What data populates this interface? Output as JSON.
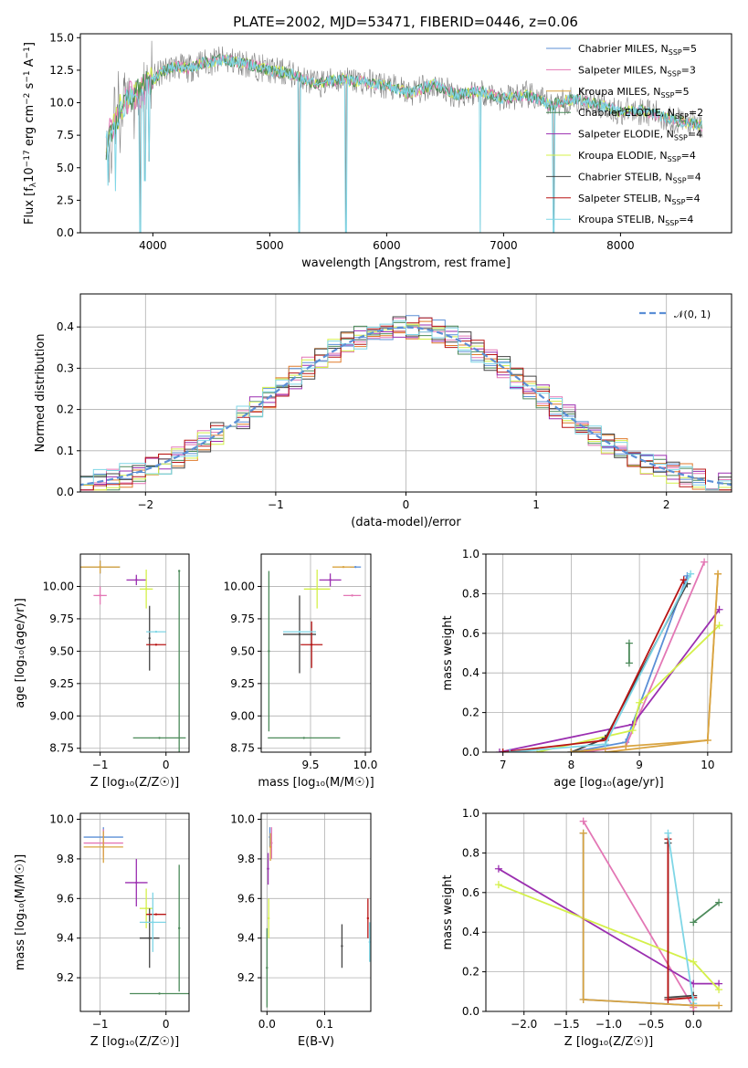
{
  "title": "PLATE=2002, MJD=53471, FIBERID=0446, z=0.06",
  "colors": {
    "Chabrier MILES": "#5b8fd6",
    "Salpeter MILES": "#e377b5",
    "Kroupa MILES": "#d9a441",
    "Chabrier ELODIE": "#4c8a5a",
    "Salpeter ELODIE": "#9b2fb0",
    "Kroupa ELODIE": "#d4f04a",
    "Chabrier STELIB": "#444444",
    "Salpeter STELIB": "#b81414",
    "Kroupa STELIB": "#7fd6e6",
    "data": "#808080",
    "dark_orange": "#e07a2a",
    "gauss": "#5b8fd6"
  },
  "chart_data": [
    {
      "type": "line",
      "id": "spectrum",
      "xlabel": "wavelength [Angstrom, rest frame]",
      "ylabel": "Flux [f_λ10^-17 erg cm^-2 s^-1 A^-1]",
      "xlim": [
        3380,
        8950
      ],
      "ylim": [
        0,
        15.3
      ],
      "xticks": [
        4000,
        5000,
        6000,
        7000,
        8000
      ],
      "yticks": [
        0.0,
        2.5,
        5.0,
        7.5,
        10.0,
        12.5,
        15.0
      ],
      "ytick_labels": [
        "0.0",
        "2.5",
        "5.0",
        "7.5",
        "10.0",
        "12.5",
        "15.0"
      ],
      "legend_position": "upper-right",
      "legend": [
        {
          "base": "Chabrier MILES, N",
          "sub": "SSP",
          "tail": "=5"
        },
        {
          "base": "Salpeter MILES, N",
          "sub": "SSP",
          "tail": "=3"
        },
        {
          "base": "Kroupa MILES, N",
          "sub": "SSP",
          "tail": "=5"
        },
        {
          "base": "Chabrier ELODIE, N",
          "sub": "SSP",
          "tail": "=2"
        },
        {
          "base": "Salpeter ELODIE, N",
          "sub": "SSP",
          "tail": "=4"
        },
        {
          "base": "Kroupa ELODIE, N",
          "sub": "SSP",
          "tail": "=4"
        },
        {
          "base": "Chabrier STELIB, N",
          "sub": "SSP",
          "tail": "=4"
        },
        {
          "base": "Salpeter STELIB, N",
          "sub": "SSP",
          "tail": "=4"
        },
        {
          "base": "Kroupa STELIB, N",
          "sub": "SSP",
          "tail": "=4"
        }
      ],
      "continuum_nodes": {
        "x": [
          3600,
          3700,
          3800,
          3900,
          4000,
          4100,
          4200,
          4300,
          4400,
          4600,
          4800,
          5000,
          5200,
          5400,
          5600,
          5800,
          6000,
          6200,
          6400,
          6600,
          6800,
          7000,
          7200,
          7400,
          7600,
          7800,
          8000,
          8200,
          8400,
          8600,
          8700
        ],
        "y": [
          7.0,
          9.0,
          10.5,
          10.8,
          11.8,
          12.5,
          12.8,
          12.6,
          13.0,
          13.3,
          13.0,
          12.5,
          12.2,
          11.4,
          11.8,
          11.6,
          11.3,
          10.7,
          11.4,
          10.6,
          10.9,
          10.3,
          10.6,
          9.8,
          10.3,
          9.9,
          9.3,
          9.4,
          8.8,
          8.4,
          8.2
        ]
      },
      "dips": [
        {
          "x": 3890,
          "y": 0.0
        },
        {
          "x": 3933,
          "y": 4.0
        },
        {
          "x": 3968,
          "y": 5.5
        },
        {
          "x": 5250,
          "y": 0.0
        },
        {
          "x": 5650,
          "y": 0.0
        },
        {
          "x": 6800,
          "y": 0.0
        },
        {
          "x": 7430,
          "y": 0.0
        }
      ]
    },
    {
      "type": "line",
      "id": "residual_histogram",
      "xlabel": "(data-model)/error",
      "ylabel": "Normed distribution",
      "xlim": [
        -2.5,
        2.5
      ],
      "ylim": [
        0,
        0.48
      ],
      "xticks": [
        -2,
        -1,
        0,
        1,
        2
      ],
      "yticks": [
        0.0,
        0.1,
        0.2,
        0.3,
        0.4
      ],
      "ytick_labels": [
        "0.0",
        "0.1",
        "0.2",
        "0.3",
        "0.4"
      ],
      "grid": true,
      "legend_position": "upper-right",
      "legend": [
        "𝒩(0, 1)"
      ],
      "bin_width": 0.1
    },
    {
      "type": "scatter",
      "id": "age_vs_Z",
      "xlabel": "Z [log₁₀(Z/Z☉)]",
      "ylabel": "age  [log₁₀(age/yr)]",
      "xlim": [
        -1.3,
        0.35
      ],
      "ylim": [
        8.72,
        10.25
      ],
      "xticks": [
        -1,
        0
      ],
      "yticks": [
        8.75,
        9.0,
        9.25,
        9.5,
        9.75,
        10.0
      ],
      "ytick_labels": [
        "8.75",
        "9.00",
        "9.25",
        "9.50",
        "9.75",
        "10.00"
      ],
      "grid": true,
      "points": [
        {
          "series": "Chabrier MILES",
          "x": -1.0,
          "y": 10.15,
          "xerr": 0.3,
          "yerr": 0.05
        },
        {
          "series": "Salpeter MILES",
          "x": -1.0,
          "y": 9.93,
          "xerr": 0.1,
          "yerr": 0.07
        },
        {
          "series": "Kroupa MILES",
          "x": -1.0,
          "y": 10.15,
          "xerr": 0.3,
          "yerr": 0.05
        },
        {
          "series": "Chabrier ELODIE",
          "x": -0.1,
          "y": 8.83,
          "xerr": 0.4,
          "yerr": 0.0
        },
        {
          "series": "Chabrier ELODIE",
          "x": 0.2,
          "y": 10.12,
          "xerr": 0.0,
          "yerr": 0.0
        },
        {
          "series": "Salpeter ELODIE",
          "x": -0.45,
          "y": 10.05,
          "xerr": 0.15,
          "yerr": 0.04
        },
        {
          "series": "Kroupa ELODIE",
          "x": -0.3,
          "y": 9.98,
          "xerr": 0.1,
          "yerr": 0.15
        },
        {
          "series": "Chabrier STELIB",
          "x": -0.25,
          "y": 9.6,
          "xerr": 0.0,
          "yerr": 0.25
        },
        {
          "series": "Salpeter STELIB",
          "x": -0.15,
          "y": 9.55,
          "xerr": 0.15,
          "yerr": 0.0
        },
        {
          "series": "Kroupa STELIB",
          "x": -0.15,
          "y": 9.65,
          "xerr": 0.15,
          "yerr": 0.0
        }
      ]
    },
    {
      "type": "scatter",
      "id": "age_vs_mass",
      "xlabel": "mass [log₁₀(M/M☉)]",
      "ylabel": "",
      "xlim": [
        9.05,
        10.05
      ],
      "ylim": [
        8.72,
        10.25
      ],
      "xticks": [
        9.5,
        10.0
      ],
      "xtick_labels": [
        "9.5",
        "10.0"
      ],
      "yticks": [
        8.75,
        9.0,
        9.25,
        9.5,
        9.75,
        10.0
      ],
      "ytick_labels": [
        "8.75",
        "9.00",
        "9.25",
        "9.50",
        "9.75",
        "10.00"
      ],
      "grid": true,
      "points": [
        {
          "series": "Chabrier MILES",
          "x": 9.91,
          "y": 10.15,
          "xerr": 0.05,
          "yerr": 0.0
        },
        {
          "series": "Salpeter MILES",
          "x": 9.88,
          "y": 9.93,
          "xerr": 0.08,
          "yerr": 0.0
        },
        {
          "series": "Kroupa MILES",
          "x": 9.8,
          "y": 10.15,
          "xerr": 0.1,
          "yerr": 0.0
        },
        {
          "series": "Chabrier ELODIE",
          "x": 9.44,
          "y": 8.83,
          "xerr": 0.33,
          "yerr": 0.0
        },
        {
          "series": "Chabrier ELODIE",
          "x": 9.12,
          "y": 9.5,
          "xerr": 0.0,
          "yerr": 0.62
        },
        {
          "series": "Salpeter ELODIE",
          "x": 9.68,
          "y": 10.05,
          "xerr": 0.1,
          "yerr": 0.05
        },
        {
          "series": "Kroupa ELODIE",
          "x": 9.56,
          "y": 9.98,
          "xerr": 0.12,
          "yerr": 0.15
        },
        {
          "series": "Chabrier STELIB",
          "x": 9.4,
          "y": 9.63,
          "xerr": 0.15,
          "yerr": 0.3
        },
        {
          "series": "Salpeter STELIB",
          "x": 9.51,
          "y": 9.55,
          "xerr": 0.1,
          "yerr": 0.18
        },
        {
          "series": "Kroupa STELIB",
          "x": 9.4,
          "y": 9.65,
          "xerr": 0.15,
          "yerr": 0.0
        }
      ]
    },
    {
      "type": "line",
      "id": "weight_vs_age",
      "xlabel": "age  [log₁₀(age/yr)]",
      "ylabel": "mass weight",
      "xlim": [
        6.75,
        10.35
      ],
      "ylim": [
        0,
        1.0
      ],
      "xticks": [
        7,
        8,
        9,
        10
      ],
      "yticks": [
        0.0,
        0.2,
        0.4,
        0.6,
        0.8,
        1.0
      ],
      "ytick_labels": [
        "0.0",
        "0.2",
        "0.4",
        "0.6",
        "0.8",
        "1.0"
      ],
      "grid": true,
      "series": [
        {
          "name": "Chabrier MILES",
          "x": [
            8.0,
            8.8,
            9.7
          ],
          "y": [
            0.0,
            0.05,
            0.89
          ]
        },
        {
          "name": "Salpeter MILES",
          "x": [
            8.2,
            8.8,
            9.95
          ],
          "y": [
            0.0,
            0.03,
            0.96
          ]
        },
        {
          "name": "Kroupa MILES",
          "x": [
            8.5,
            10.0,
            10.15
          ],
          "y": [
            0.0,
            0.06,
            0.9
          ]
        },
        {
          "name": "Chabrier ELODIE",
          "x": [
            8.85,
            8.85
          ],
          "y": [
            0.45,
            0.55
          ]
        },
        {
          "name": "Salpeter ELODIE",
          "x": [
            6.95,
            8.9,
            10.17
          ],
          "y": [
            0.0,
            0.14,
            0.72
          ]
        },
        {
          "name": "Kroupa ELODIE",
          "x": [
            7.5,
            8.9,
            9.0,
            10.17
          ],
          "y": [
            0.0,
            0.11,
            0.25,
            0.64
          ]
        },
        {
          "name": "Chabrier STELIB",
          "x": [
            8.0,
            8.5,
            9.7
          ],
          "y": [
            0.0,
            0.07,
            0.85
          ]
        },
        {
          "name": "Salpeter STELIB",
          "x": [
            7.0,
            8.5,
            9.65
          ],
          "y": [
            0.0,
            0.06,
            0.87
          ]
        },
        {
          "name": "Kroupa STELIB",
          "x": [
            7.1,
            8.5,
            9.75
          ],
          "y": [
            0.0,
            0.04,
            0.9
          ]
        },
        {
          "name": "Kroupa MILES",
          "x": [
            8.0,
            8.8,
            10.0,
            10.15
          ],
          "y": [
            0.0,
            0.03,
            0.06,
            0.9
          ]
        }
      ]
    },
    {
      "type": "scatter",
      "id": "mass_vs_Z",
      "xlabel": "Z [log₁₀(Z/Z☉)]",
      "ylabel": "mass [log₁₀(M/M☉)]",
      "xlim": [
        -1.3,
        0.35
      ],
      "ylim": [
        9.03,
        10.03
      ],
      "xticks": [
        -1,
        0
      ],
      "yticks": [
        9.2,
        9.4,
        9.6,
        9.8,
        10.0
      ],
      "ytick_labels": [
        "9.2",
        "9.4",
        "9.6",
        "9.8",
        "10.0"
      ],
      "grid": true,
      "points": [
        {
          "series": "Chabrier MILES",
          "x": -0.95,
          "y": 9.91,
          "xerr": 0.3,
          "yerr": 0.05
        },
        {
          "series": "Salpeter MILES",
          "x": -0.95,
          "y": 9.88,
          "xerr": 0.3,
          "yerr": 0.07
        },
        {
          "series": "Kroupa MILES",
          "x": -0.95,
          "y": 9.86,
          "xerr": 0.3,
          "yerr": 0.08
        },
        {
          "series": "Chabrier ELODIE",
          "x": -0.1,
          "y": 9.12,
          "xerr": 0.45,
          "yerr": 0.0
        },
        {
          "series": "Chabrier ELODIE",
          "x": 0.2,
          "y": 9.45,
          "xerr": 0.0,
          "yerr": 0.32
        },
        {
          "series": "Salpeter ELODIE",
          "x": -0.45,
          "y": 9.68,
          "xerr": 0.17,
          "yerr": 0.12
        },
        {
          "series": "Kroupa ELODIE",
          "x": -0.3,
          "y": 9.55,
          "xerr": 0.1,
          "yerr": 0.1
        },
        {
          "series": "Chabrier STELIB",
          "x": -0.25,
          "y": 9.4,
          "xerr": 0.15,
          "yerr": 0.15
        },
        {
          "series": "Salpeter STELIB",
          "x": -0.15,
          "y": 9.52,
          "xerr": 0.15,
          "yerr": 0.0
        },
        {
          "series": "Kroupa STELIB",
          "x": -0.2,
          "y": 9.48,
          "xerr": 0.2,
          "yerr": 0.15
        }
      ]
    },
    {
      "type": "scatter",
      "id": "mass_vs_EBV",
      "xlabel": "E(B-V)",
      "ylabel": "",
      "xlim": [
        -0.01,
        0.18
      ],
      "ylim": [
        9.03,
        10.03
      ],
      "xticks": [
        0.0,
        0.1
      ],
      "xtick_labels": [
        "0.0",
        "0.1"
      ],
      "yticks": [
        9.2,
        9.4,
        9.6,
        9.8,
        10.0
      ],
      "ytick_labels": [
        "9.2",
        "9.4",
        "9.6",
        "9.8",
        "10.0"
      ],
      "grid": true,
      "points": [
        {
          "series": "Chabrier MILES",
          "x": 0.005,
          "y": 9.91,
          "xerr": 0.0,
          "yerr": 0.05
        },
        {
          "series": "Salpeter MILES",
          "x": 0.008,
          "y": 9.88,
          "xerr": 0.0,
          "yerr": 0.08
        },
        {
          "series": "Kroupa MILES",
          "x": 0.006,
          "y": 9.86,
          "xerr": 0.0,
          "yerr": 0.07
        },
        {
          "series": "Chabrier ELODIE",
          "x": 0.0,
          "y": 9.25,
          "xerr": 0.0,
          "yerr": 0.2
        },
        {
          "series": "Salpeter ELODIE",
          "x": 0.002,
          "y": 9.75,
          "xerr": 0.0,
          "yerr": 0.08
        },
        {
          "series": "Kroupa ELODIE",
          "x": 0.003,
          "y": 9.5,
          "xerr": 0.0,
          "yerr": 0.1
        },
        {
          "series": "Chabrier STELIB",
          "x": 0.13,
          "y": 9.36,
          "xerr": 0.0,
          "yerr": 0.11
        },
        {
          "series": "Salpeter STELIB",
          "x": 0.175,
          "y": 9.5,
          "xerr": 0.0,
          "yerr": 0.1
        },
        {
          "series": "Kroupa STELIB",
          "x": 0.178,
          "y": 9.38,
          "xerr": 0.0,
          "yerr": 0.1
        }
      ]
    },
    {
      "type": "line",
      "id": "weight_vs_Z",
      "xlabel": "Z [log₁₀(Z/Z☉)]",
      "ylabel": "mass weight",
      "xlim": [
        -2.45,
        0.45
      ],
      "ylim": [
        0,
        1.0
      ],
      "xticks": [
        -2.0,
        -1.5,
        -1.0,
        -0.5,
        0.0
      ],
      "xtick_labels": [
        "−2.0",
        "−1.5",
        "−1.0",
        "−0.5",
        "0.0"
      ],
      "yticks": [
        0.0,
        0.2,
        0.4,
        0.6,
        0.8,
        1.0
      ],
      "ytick_labels": [
        "0.0",
        "0.2",
        "0.4",
        "0.6",
        "0.8",
        "1.0"
      ],
      "grid": true,
      "series": [
        {
          "name": "Chabrier MILES",
          "x": [
            -1.3,
            -1.3,
            0.0
          ],
          "y": [
            0.9,
            0.06,
            0.03
          ]
        },
        {
          "name": "Salpeter MILES",
          "x": [
            -1.3,
            0.0,
            0.0
          ],
          "y": [
            0.96,
            0.02,
            0.0
          ]
        },
        {
          "name": "Chabrier ELODIE",
          "x": [
            0.0,
            0.3
          ],
          "y": [
            0.45,
            0.55
          ]
        },
        {
          "name": "Salpeter ELODIE",
          "x": [
            -2.3,
            0.0,
            0.3
          ],
          "y": [
            0.72,
            0.14,
            0.14
          ]
        },
        {
          "name": "Kroupa ELODIE",
          "x": [
            -2.3,
            0.0,
            0.3
          ],
          "y": [
            0.64,
            0.25,
            0.11
          ]
        },
        {
          "name": "Chabrier STELIB",
          "x": [
            -0.3,
            -0.3,
            0.0
          ],
          "y": [
            0.85,
            0.07,
            0.08
          ]
        },
        {
          "name": "Salpeter STELIB",
          "x": [
            -0.3,
            -0.3,
            0.0
          ],
          "y": [
            0.87,
            0.06,
            0.07
          ]
        },
        {
          "name": "Kroupa STELIB",
          "x": [
            -0.3,
            0.0,
            0.0
          ],
          "y": [
            0.9,
            0.04,
            0.06
          ]
        },
        {
          "name": "Kroupa MILES",
          "x": [
            -1.3,
            -1.3,
            0.0,
            0.3
          ],
          "y": [
            0.9,
            0.06,
            0.03,
            0.03
          ]
        }
      ]
    }
  ]
}
